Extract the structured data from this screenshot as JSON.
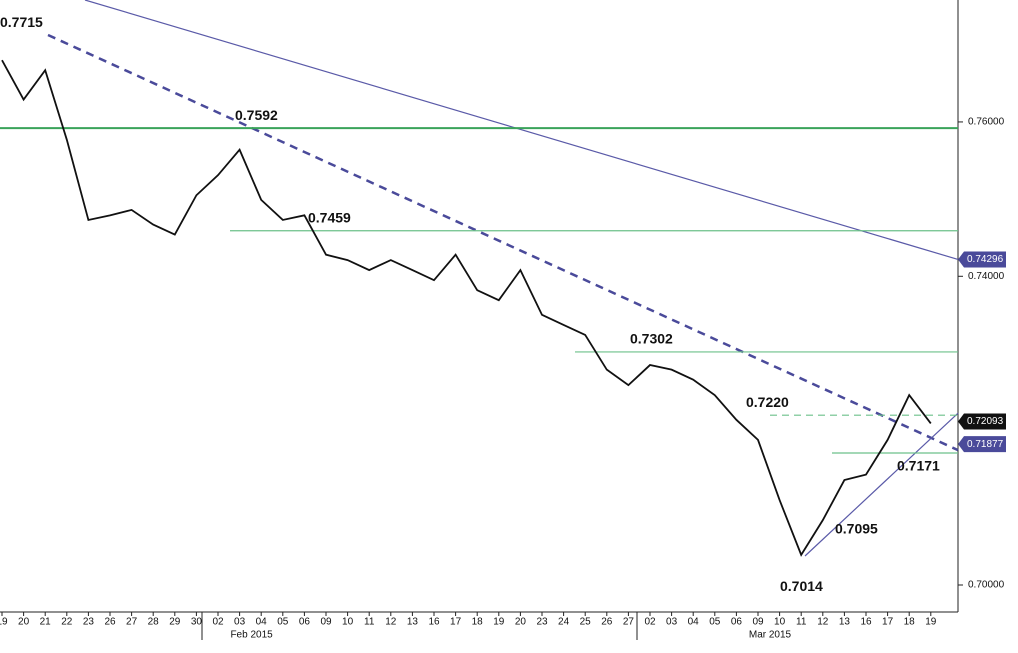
{
  "chart_data": {
    "type": "line",
    "color": "#111111",
    "categories": [
      "19",
      "20",
      "21",
      "22",
      "23",
      "26",
      "27",
      "28",
      "29",
      "30",
      "02",
      "03",
      "04",
      "05",
      "06",
      "09",
      "10",
      "11",
      "12",
      "13",
      "16",
      "17",
      "18",
      "19",
      "20",
      "23",
      "24",
      "25",
      "26",
      "27",
      "02",
      "03",
      "04",
      "05",
      "06",
      "09",
      "10",
      "11",
      "12",
      "13",
      "16",
      "17",
      "18",
      "19"
    ],
    "month_labels": [
      {
        "index": 11,
        "label": "Feb 2015"
      },
      {
        "index": 35,
        "label": "Mar 2015"
      }
    ],
    "values": [
      0.768,
      0.7629,
      0.7667,
      0.7577,
      0.7473,
      0.7479,
      0.7486,
      0.7467,
      0.7454,
      0.7505,
      0.7531,
      0.7564,
      0.7499,
      0.7473,
      0.7479,
      0.7428,
      0.7421,
      0.7408,
      0.7421,
      0.7408,
      0.7395,
      0.7428,
      0.7382,
      0.7369,
      0.7408,
      0.735,
      0.7337,
      0.7324,
      0.7279,
      0.7259,
      0.7285,
      0.7279,
      0.7266,
      0.7246,
      0.7214,
      0.7188,
      0.711,
      0.7039,
      0.7084,
      0.7136,
      0.7143,
      0.7188,
      0.7246,
      0.72093
    ],
    "ylim": [
      0.6965,
      0.7758
    ],
    "yticks": [
      {
        "value": 0.7,
        "label": "0.70000"
      },
      {
        "value": 0.74,
        "label": "0.74000"
      },
      {
        "value": 0.76,
        "label": "0.76000"
      }
    ],
    "levels": [
      {
        "value": 0.7592,
        "label": "0.7592",
        "color": "#3aa35a"
      },
      {
        "value": 0.7459,
        "label": "0.7459",
        "color": "#6cc08a"
      },
      {
        "value": 0.7302,
        "label": "0.7302",
        "color": "#6cc08a"
      },
      {
        "value": 0.722,
        "label": "0.7220",
        "color": "#6cc08a"
      },
      {
        "value": 0.7171,
        "label": "0.7171",
        "color": "#6cc08a"
      }
    ],
    "annotations": [
      {
        "value": 0.7715,
        "label": "0.7715"
      },
      {
        "value": 0.7095,
        "label": "0.7095"
      },
      {
        "value": 0.7014,
        "label": "0.7014"
      }
    ],
    "price_tags": [
      {
        "value": 0.74296,
        "label": "0.74296",
        "color": "#4a4a9a"
      },
      {
        "value": 0.72093,
        "label": "0.72093",
        "color": "#111111"
      },
      {
        "value": 0.71877,
        "label": "0.71877",
        "color": "#4a4a9a"
      }
    ]
  }
}
